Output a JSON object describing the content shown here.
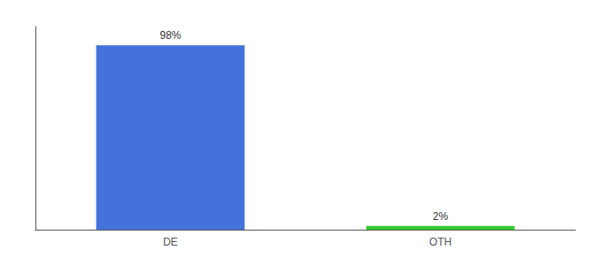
{
  "chart_data": {
    "type": "bar",
    "categories": [
      "DE",
      "OTH"
    ],
    "values": [
      98,
      2
    ],
    "value_labels": [
      "98%",
      "2%"
    ],
    "data_labels": true,
    "colors": [
      "#4472db",
      "#33cc33"
    ],
    "ylim": [
      0,
      108
    ],
    "tick_labels": "x",
    "grid": false
  }
}
